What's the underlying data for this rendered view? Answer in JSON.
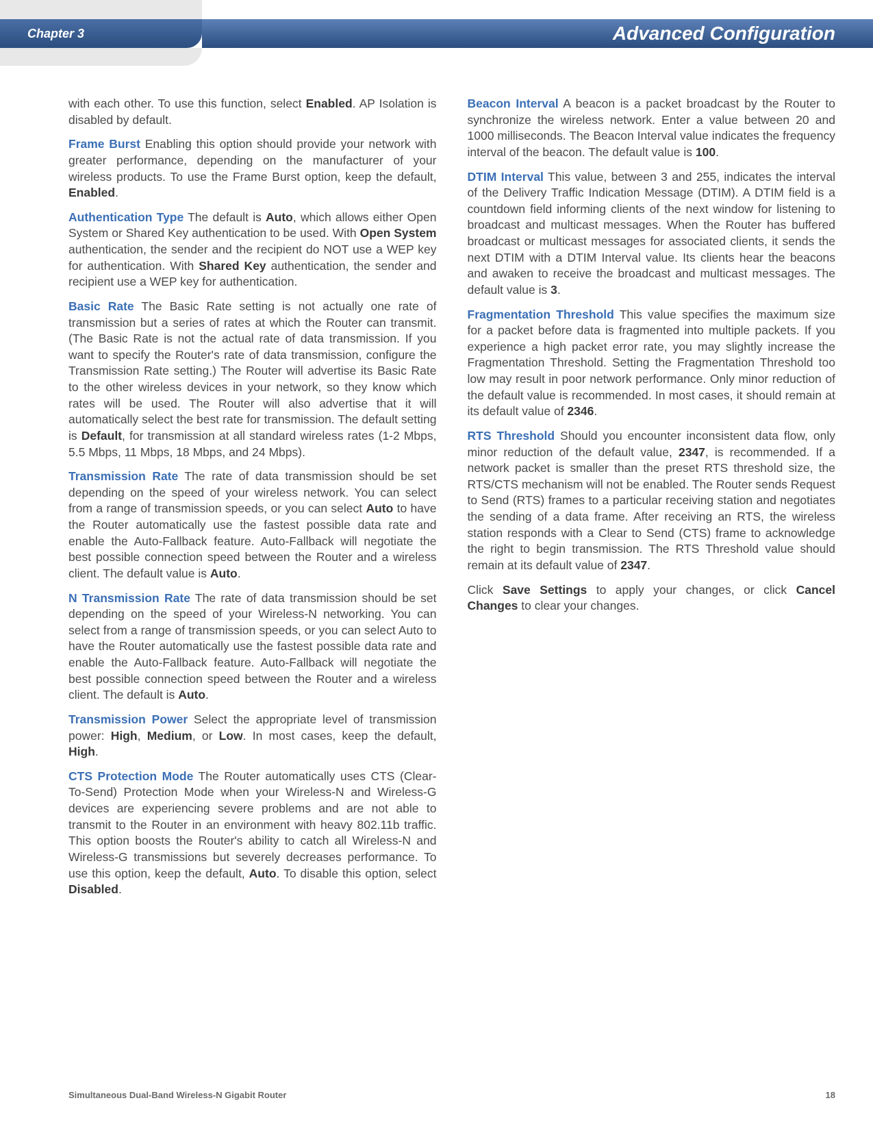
{
  "header": {
    "chapter": "Chapter 3",
    "title": "Advanced Configuration"
  },
  "left_column": {
    "p1_a": "with each other. To use this function, select ",
    "p1_b": "Enabled",
    "p1_c": ". AP Isolation is disabled by default.",
    "p2_term": "Frame Burst",
    "p2_a": "  Enabling this option should provide your network with greater performance, depending on the manufacturer of your wireless products. To use the Frame Burst option, keep the default, ",
    "p2_b": "Enabled",
    "p2_c": ".",
    "p3_term": "Authentication Type",
    "p3_a": "  The default is ",
    "p3_b": "Auto",
    "p3_c": ", which allows either Open System or Shared Key authentication to be used. With ",
    "p3_d": "Open System",
    "p3_e": " authentication, the sender and the recipient do NOT use a WEP key for authentication. With ",
    "p3_f": "Shared Key",
    "p3_g": " authentication, the sender and recipient use a WEP key for authentication.",
    "p4_term": "Basic Rate",
    "p4_a": "  The Basic Rate setting is not actually one rate of transmission but a series of rates at which the Router can transmit. (The Basic Rate is not the actual rate of data transmission. If you want to specify the Router's rate of data transmission, configure the Transmission Rate setting.) The Router will advertise its Basic Rate to the other wireless devices in your network, so they know which rates will be used. The Router will also advertise that it will automatically select the best rate for transmission. The default setting is ",
    "p4_b": "Default",
    "p4_c": ", for transmission at all standard wireless rates (1-2 Mbps, 5.5 Mbps, 11 Mbps, 18 Mbps, and 24 Mbps).",
    "p5_term": "Transmission Rate",
    "p5_a": "  The rate of data transmission should be set depending on the speed of your wireless network. You can select from a range of transmission speeds, or you can select ",
    "p5_b": "Auto",
    "p5_c": " to have the Router automatically use the fastest possible data rate and enable the Auto-Fallback feature. Auto-Fallback will negotiate the best possible connection speed between the Router and a wireless client. The default value is ",
    "p5_d": "Auto",
    "p5_e": ".",
    "p6_term": "N Transmission Rate",
    "p6_a": " The rate of data transmission should be set depending on the speed of your Wireless-N networking. You can select from a range of transmission speeds, or you can select Auto to have the Router automatically use the fastest possible data rate and enable the Auto-Fallback feature. Auto-Fallback will negotiate the best possible connection speed between the Router and a wireless client. The default is ",
    "p6_b": "Auto",
    "p6_c": ".",
    "p7_term": "Transmission Power",
    "p7_a": " Select the appropriate level of transmission power: ",
    "p7_b": "High",
    "p7_c": ", ",
    "p7_d": "Medium",
    "p7_e": ", or ",
    "p7_f": "Low",
    "p7_g": ". In most cases, keep the default, ",
    "p7_h": "High",
    "p7_i": ".",
    "p8_term": "CTS Protection Mode",
    "p8_a": " The Router automatically uses CTS (Clear-To-Send) Protection Mode when your Wireless-N and Wireless-G devices are experiencing severe problems and are not able to transmit to the Router in an environment with heavy 802.11b traffic. This option boosts the Router's ability to catch all Wireless-N and Wireless-G transmissions but severely decreases performance. To use this option, keep the default, ",
    "p8_b": "Auto",
    "p8_c": ". To disable this option, select ",
    "p8_d": "Disabled",
    "p8_e": "."
  },
  "right_column": {
    "p1_term": "Beacon Interval",
    "p1_a": "  A beacon is a packet broadcast by the Router to synchronize the wireless network. Enter a value between 20 and 1000 milliseconds. The Beacon Interval value indicates the frequency interval of the beacon. The default value is ",
    "p1_b": "100",
    "p1_c": ".",
    "p2_term": "DTIM Interval",
    "p2_a": "  This value, between 3 and 255, indicates the interval of the Delivery Traffic Indication Message (DTIM). A DTIM field is a countdown field informing clients of the next window for listening to broadcast and multicast messages. When the Router has buffered broadcast or multicast messages for associated clients, it sends the next DTIM with a DTIM Interval value. Its clients hear the beacons and awaken to receive the broadcast and multicast messages. The default value is ",
    "p2_b": "3",
    "p2_c": ".",
    "p3_term": "Fragmentation Threshold",
    "p3_a": " This value specifies the maximum size for a packet before data is fragmented into multiple packets. If you experience a high packet error rate, you may slightly increase the Fragmentation Threshold. Setting the Fragmentation Threshold too low may result in poor network performance. Only minor reduction of the default value is recommended. In most cases, it should remain at its default value of ",
    "p3_b": "2346",
    "p3_c": ".",
    "p4_term": "RTS Threshold",
    "p4_a": "  Should you encounter inconsistent data flow, only minor reduction of the default value, ",
    "p4_b": "2347",
    "p4_c": ", is recommended. If a network packet is smaller than the preset RTS threshold size, the RTS/CTS mechanism will not be enabled. The Router sends Request to Send (RTS) frames to a particular receiving station and negotiates the sending of a data frame. After receiving an RTS, the wireless station responds with a Clear to Send (CTS) frame to acknowledge the right to begin transmission. The RTS Threshold value should remain at its default value of ",
    "p4_d": "2347",
    "p4_e": ".",
    "p5_a": "Click ",
    "p5_b": "Save Settings",
    "p5_c": " to apply your changes, or click ",
    "p5_d": "Cancel Changes",
    "p5_e": " to clear your changes."
  },
  "footer": {
    "product": "Simultaneous Dual-Band Wireless-N Gigabit Router",
    "page": "18"
  }
}
